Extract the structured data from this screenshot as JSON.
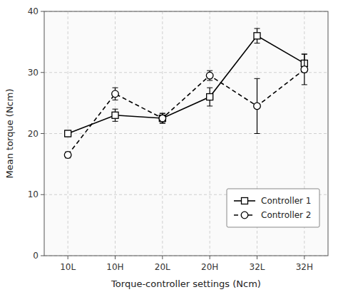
{
  "chart_data": {
    "type": "line",
    "categories": [
      "10L",
      "10H",
      "20L",
      "20H",
      "32L",
      "32H"
    ],
    "series": [
      {
        "name": "Controller 1",
        "color": "#000000",
        "marker": "square",
        "line_style": "solid",
        "values": [
          20.0,
          23.0,
          22.5,
          26.0,
          36.0,
          31.5
        ],
        "errors": [
          0.5,
          1.0,
          0.8,
          1.5,
          1.2,
          1.5
        ]
      },
      {
        "name": "Controller 2",
        "color": "#000000",
        "marker": "circle",
        "line_style": "dashed",
        "values": [
          16.5,
          26.5,
          22.5,
          29.5,
          24.5,
          30.5
        ],
        "errors": [
          0.5,
          1.0,
          0.8,
          0.8,
          4.5,
          2.5
        ]
      }
    ],
    "xlabel": "Torque-controller settings (Ncm)",
    "ylabel": "Mean torque (Ncm)",
    "ylim": [
      0,
      40
    ],
    "yticks": [
      0,
      10,
      20,
      30,
      40
    ],
    "grid": true,
    "legend": "lower right"
  }
}
